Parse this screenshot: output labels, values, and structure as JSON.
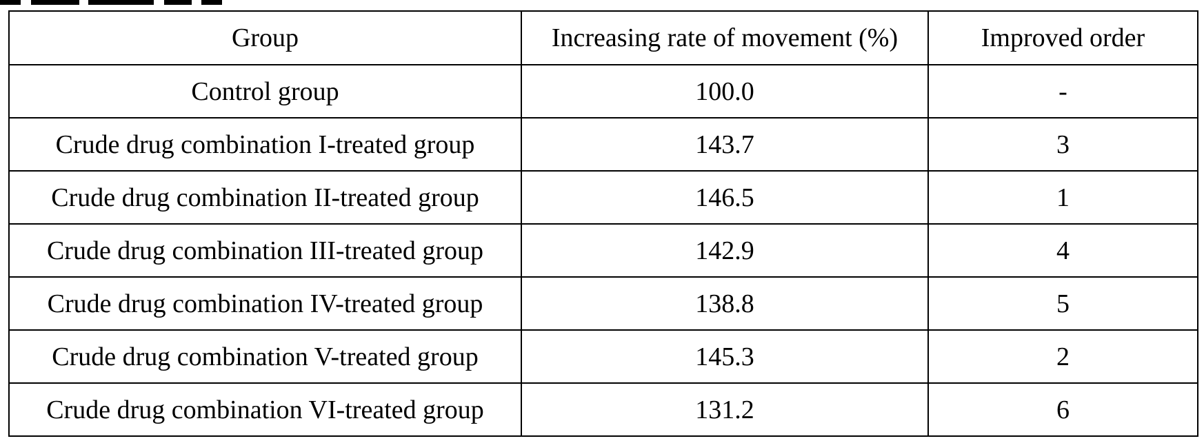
{
  "table": {
    "headers": [
      "Group",
      "Increasing rate of movement (%)",
      "Improved order"
    ],
    "rows": [
      {
        "group": "Control group",
        "rate": "100.0",
        "order": "-"
      },
      {
        "group": "Crude drug combination I-treated group",
        "rate": "143.7",
        "order": "3"
      },
      {
        "group": "Crude drug combination II-treated group",
        "rate": "146.5",
        "order": "1"
      },
      {
        "group": "Crude drug combination III-treated group",
        "rate": "142.9",
        "order": "4"
      },
      {
        "group": "Crude drug combination IV-treated group",
        "rate": "138.8",
        "order": "5"
      },
      {
        "group": "Crude drug combination V-treated group",
        "rate": "145.3",
        "order": "2"
      },
      {
        "group": "Crude drug combination VI-treated group",
        "rate": "131.2",
        "order": "6"
      }
    ]
  }
}
